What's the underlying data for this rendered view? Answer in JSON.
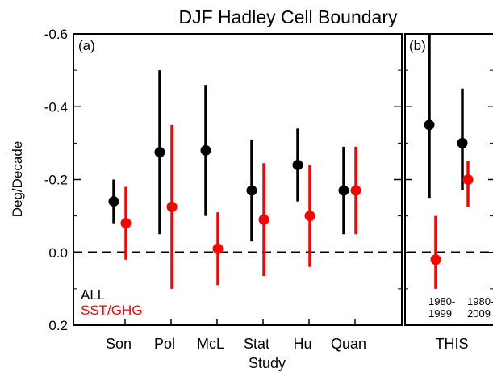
{
  "chart_data": {
    "type": "scatter",
    "title": "DJF Hadley Cell Boundary",
    "xlabel": "Study",
    "ylabel": "Deg/Decade",
    "ylim": [
      0.2,
      -0.6
    ],
    "yticks": [
      {
        "value": -0.6,
        "label": "-0.6"
      },
      {
        "value": -0.4,
        "label": "-0.4"
      },
      {
        "value": -0.2,
        "label": "-0.2"
      },
      {
        "value": 0.0,
        "label": "0.0"
      },
      {
        "value": 0.2,
        "label": "0.2"
      }
    ],
    "zero_line": "dashed",
    "legend": {
      "placement": "bottom-left",
      "entries": [
        {
          "label": "ALL",
          "color": "#000000"
        },
        {
          "label": "SST/GHG",
          "color": "#ff0000"
        }
      ]
    },
    "panels": [
      {
        "label": "(a)",
        "categories": [
          "Son",
          "Pol",
          "McL",
          "Stat",
          "Hu",
          "Quan"
        ],
        "series": [
          {
            "name": "ALL",
            "color": "#000000",
            "values": [
              -0.14,
              -0.275,
              -0.28,
              -0.17,
              -0.24,
              -0.17
            ],
            "err_low": [
              -0.08,
              -0.05,
              -0.1,
              -0.03,
              -0.14,
              -0.05
            ],
            "err_high": [
              -0.2,
              -0.5,
              -0.46,
              -0.31,
              -0.34,
              -0.29
            ]
          },
          {
            "name": "SST/GHG",
            "color": "#ff0000",
            "values": [
              -0.08,
              -0.125,
              -0.01,
              -0.09,
              -0.1,
              -0.17
            ],
            "err_low": [
              0.02,
              0.1,
              0.09,
              0.065,
              0.04,
              -0.05
            ],
            "err_high": [
              -0.18,
              -0.35,
              -0.11,
              -0.245,
              -0.24,
              -0.29
            ]
          }
        ]
      },
      {
        "label": "(b)",
        "categories": [
          "THIS"
        ],
        "period_labels": [
          [
            "1980-",
            "1999"
          ],
          [
            "1980-",
            "2009"
          ]
        ],
        "series": [
          {
            "name": "ALL",
            "color": "#000000",
            "values": [
              -0.35,
              -0.3
            ],
            "err_low": [
              -0.15,
              -0.17
            ],
            "err_high": [
              -0.6,
              -0.45
            ]
          },
          {
            "name": "SST/GHG",
            "color": "#ff0000",
            "values": [
              0.02,
              -0.2
            ],
            "err_low": [
              0.1,
              -0.125
            ],
            "err_high": [
              -0.1,
              -0.25
            ]
          }
        ]
      }
    ]
  }
}
